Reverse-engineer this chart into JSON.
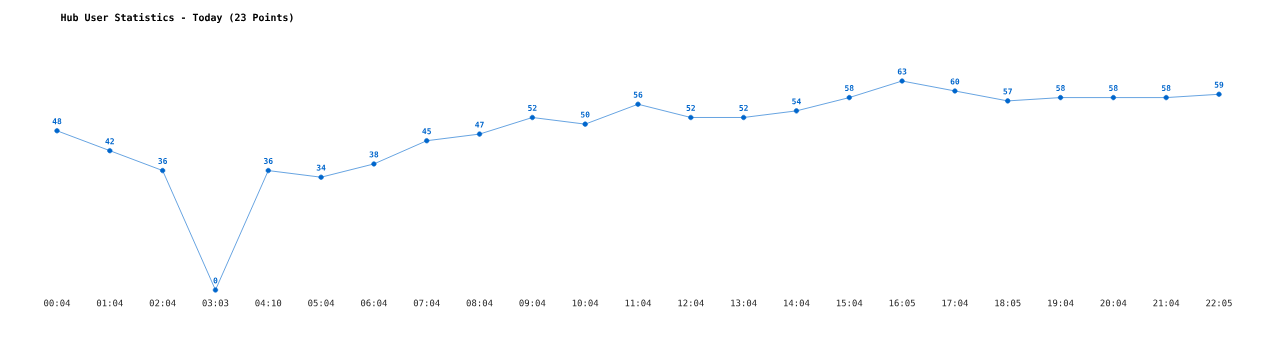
{
  "chart_data": {
    "type": "line",
    "title": "Hub User Statistics - Today (23 Points)",
    "categories": [
      "00:04",
      "01:04",
      "02:04",
      "03:03",
      "04:10",
      "05:04",
      "06:04",
      "07:04",
      "08:04",
      "09:04",
      "10:04",
      "11:04",
      "12:04",
      "13:04",
      "14:04",
      "15:04",
      "16:05",
      "17:04",
      "18:05",
      "19:04",
      "20:04",
      "21:04",
      "22:05"
    ],
    "values": [
      48,
      42,
      36,
      0,
      36,
      34,
      38,
      45,
      47,
      52,
      50,
      56,
      52,
      52,
      54,
      58,
      63,
      60,
      57,
      58,
      58,
      58,
      59
    ],
    "color": "#0066cc",
    "marker": "circle",
    "data_labels": true
  }
}
